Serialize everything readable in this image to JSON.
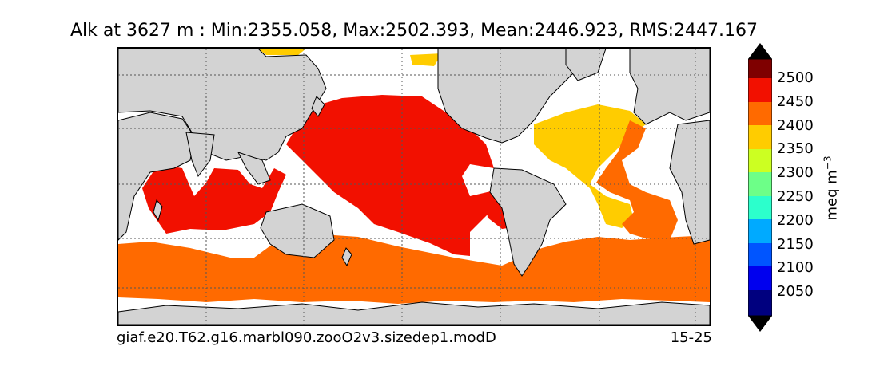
{
  "title": "Alk at 3627 m : Min:2355.058, Max:2502.393, Mean:2446.923, RMS:2447.167",
  "subtitle_left": "giaf.e20.T62.g16.marbl090.zooO2v3.sizedep1.modD",
  "subtitle_right": "15-25",
  "colorbar": {
    "label": "meq m",
    "label_superscript": "−3",
    "ticks": [
      "2500",
      "2450",
      "2400",
      "2350",
      "2300",
      "2250",
      "2200",
      "2150",
      "2100",
      "2050"
    ],
    "colors": [
      "#00007f",
      "#0000cc",
      "#0039ff",
      "#0091ff",
      "#00e5ff",
      "#2cffcc",
      "#6dff88",
      "#b1ff46",
      "#ccff22",
      "#ffcc00",
      "#ff6a00",
      "#f21000",
      "#7f0000"
    ],
    "extend": "both"
  },
  "map": {
    "land_color": "#d3d3d3",
    "ocean_nodata_color": "#ffffff",
    "gridlines": "dotted",
    "fill_colors": {
      "2350_2400": "#ffcc00",
      "2400_2450": "#ff6a00",
      "2450_2500": "#f21000"
    }
  }
}
